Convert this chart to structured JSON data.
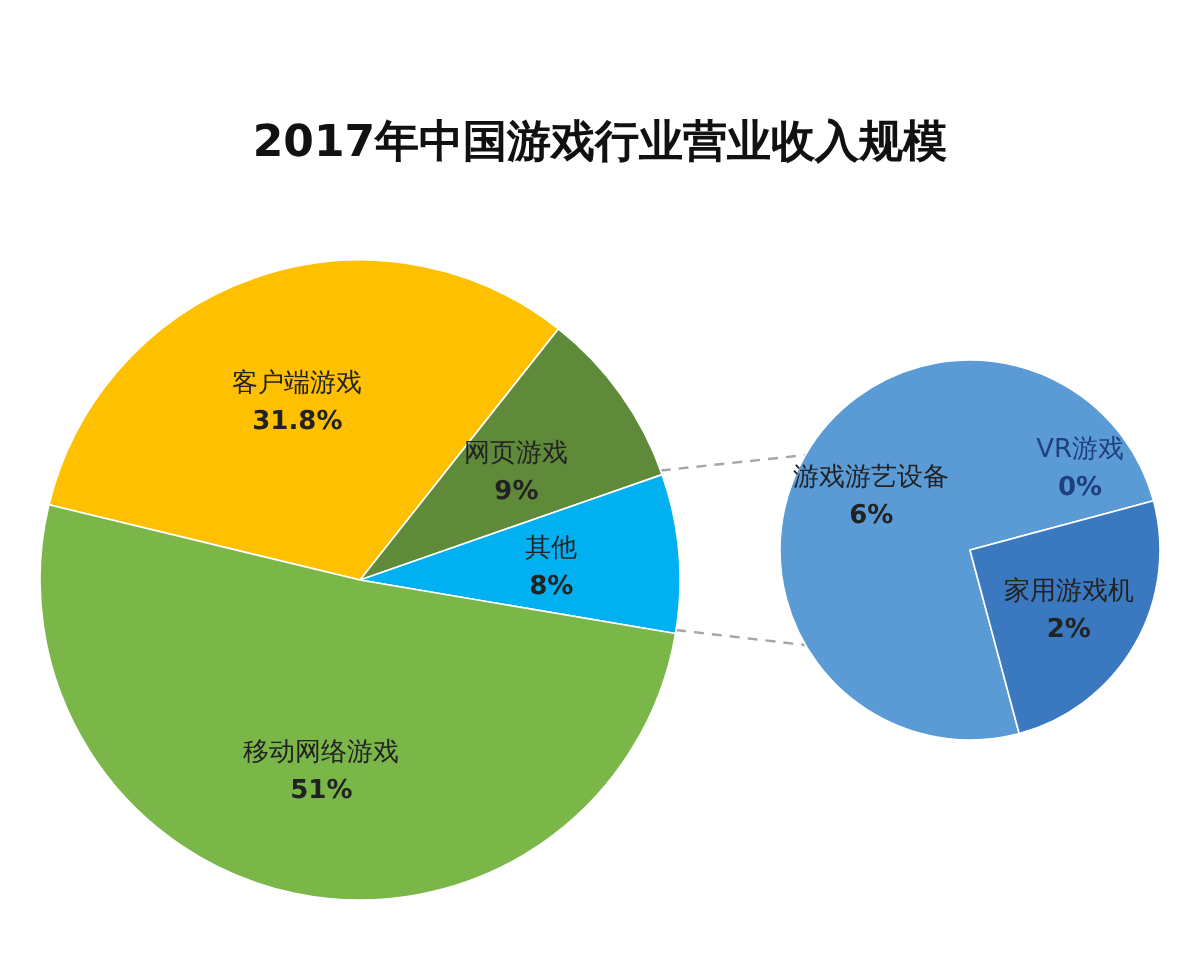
{
  "chart_data": [
    {
      "type": "pie",
      "title": "2017年中国游戏行业营业收入规模",
      "categories": [
        "客户端游戏",
        "网页游戏",
        "其他",
        "移动网络游戏"
      ],
      "values": [
        31.8,
        9,
        8,
        51
      ],
      "colors": [
        "#ffc000",
        "#5f8a3a",
        "#00b0f0",
        "#7ab648"
      ],
      "value_labels": [
        "31.8%",
        "9%",
        "8%",
        "51%"
      ]
    },
    {
      "type": "pie",
      "categories": [
        "游戏游艺设备",
        "VR游戏",
        "家用游戏机"
      ],
      "values": [
        6,
        0,
        2
      ],
      "colors": [
        "#5b9bd5",
        "#1f3f7f",
        "#3a78c0"
      ],
      "value_labels": [
        "6%",
        "0%",
        "2%"
      ]
    }
  ]
}
